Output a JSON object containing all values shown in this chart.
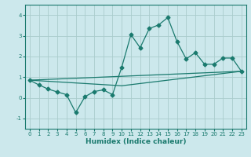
{
  "xlabel": "Humidex (Indice chaleur)",
  "ylabel": "",
  "bg_color": "#cce8ec",
  "grid_color": "#aacccc",
  "line_color": "#1a7a6e",
  "xlim": [
    -0.5,
    23.5
  ],
  "ylim": [
    -1.5,
    4.5
  ],
  "xticks": [
    0,
    1,
    2,
    3,
    4,
    5,
    6,
    7,
    8,
    9,
    10,
    11,
    12,
    13,
    14,
    15,
    16,
    17,
    18,
    19,
    20,
    21,
    22,
    23
  ],
  "yticks": [
    -1,
    0,
    1,
    2,
    3,
    4
  ],
  "series1_x": [
    0,
    1,
    2,
    3,
    4,
    5,
    6,
    7,
    8,
    9,
    10,
    11,
    12,
    13,
    14,
    15,
    16,
    17,
    18,
    19,
    20,
    21,
    22,
    23
  ],
  "series1_y": [
    0.85,
    0.62,
    0.42,
    0.28,
    0.15,
    -0.72,
    0.05,
    0.3,
    0.38,
    0.15,
    1.48,
    3.05,
    2.42,
    3.35,
    3.52,
    3.88,
    2.72,
    1.88,
    2.18,
    1.62,
    1.62,
    1.92,
    1.92,
    1.28
  ],
  "series2_x": [
    0,
    23
  ],
  "series2_y": [
    0.85,
    1.28
  ],
  "series3_x": [
    0,
    10,
    23
  ],
  "series3_y": [
    0.85,
    0.58,
    1.28
  ],
  "marker": "D",
  "marker_size": 2.5,
  "line_width": 0.9,
  "xlabel_fontsize": 6.5,
  "tick_fontsize": 5.0
}
